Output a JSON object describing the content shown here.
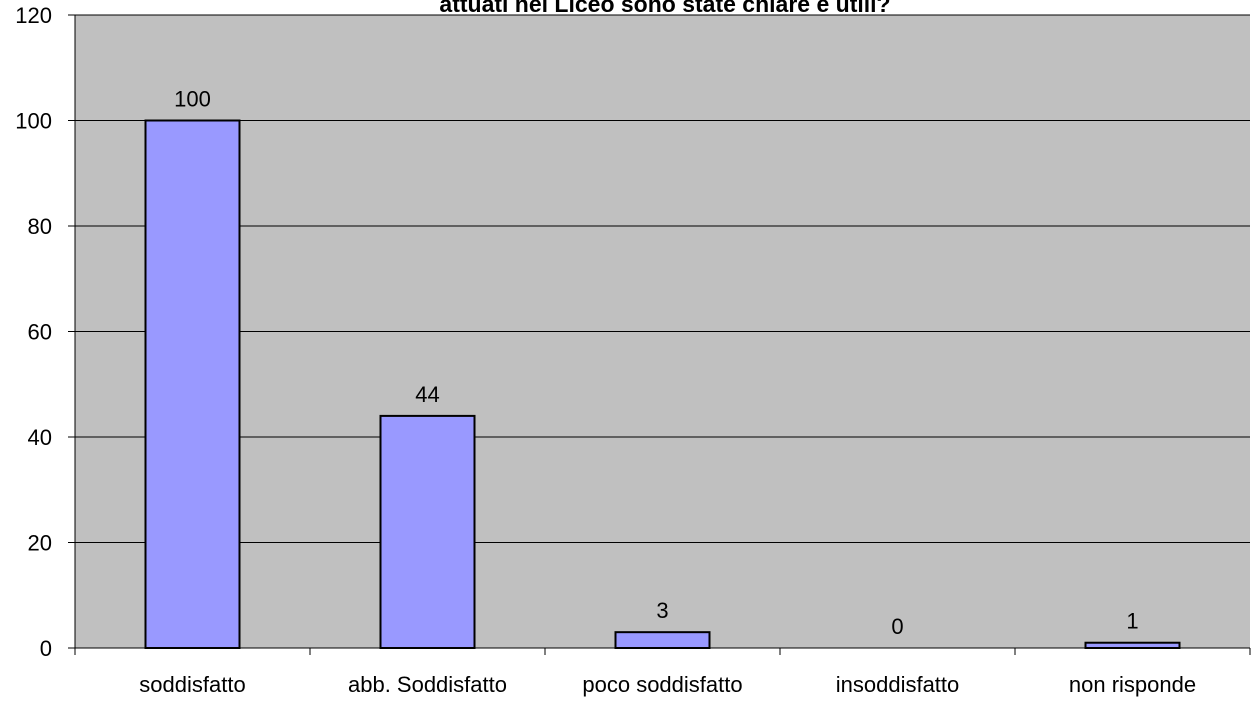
{
  "chart_data": {
    "type": "bar",
    "title": "attuati nel Liceo sono state chiare e utili?",
    "xlabel": "",
    "ylabel": "",
    "categories": [
      "soddisfatto",
      "abb. Soddisfatto",
      "poco soddisfatto",
      "insoddisfatto",
      "non risponde"
    ],
    "series": [
      {
        "values": [
          100,
          44,
          3,
          0,
          1
        ]
      }
    ],
    "data_labels": [
      "100",
      "44",
      "3",
      "0",
      "1"
    ],
    "ylim": [
      0,
      120
    ],
    "yticks": [
      "0",
      "20",
      "40",
      "60",
      "80",
      "100",
      "120"
    ],
    "grid": true,
    "legend": "none",
    "colors": {
      "plot_background": "#c0c0c0",
      "bar_fill": "#9999ff",
      "bar_stroke": "#000000",
      "gridline": "#000000"
    }
  }
}
